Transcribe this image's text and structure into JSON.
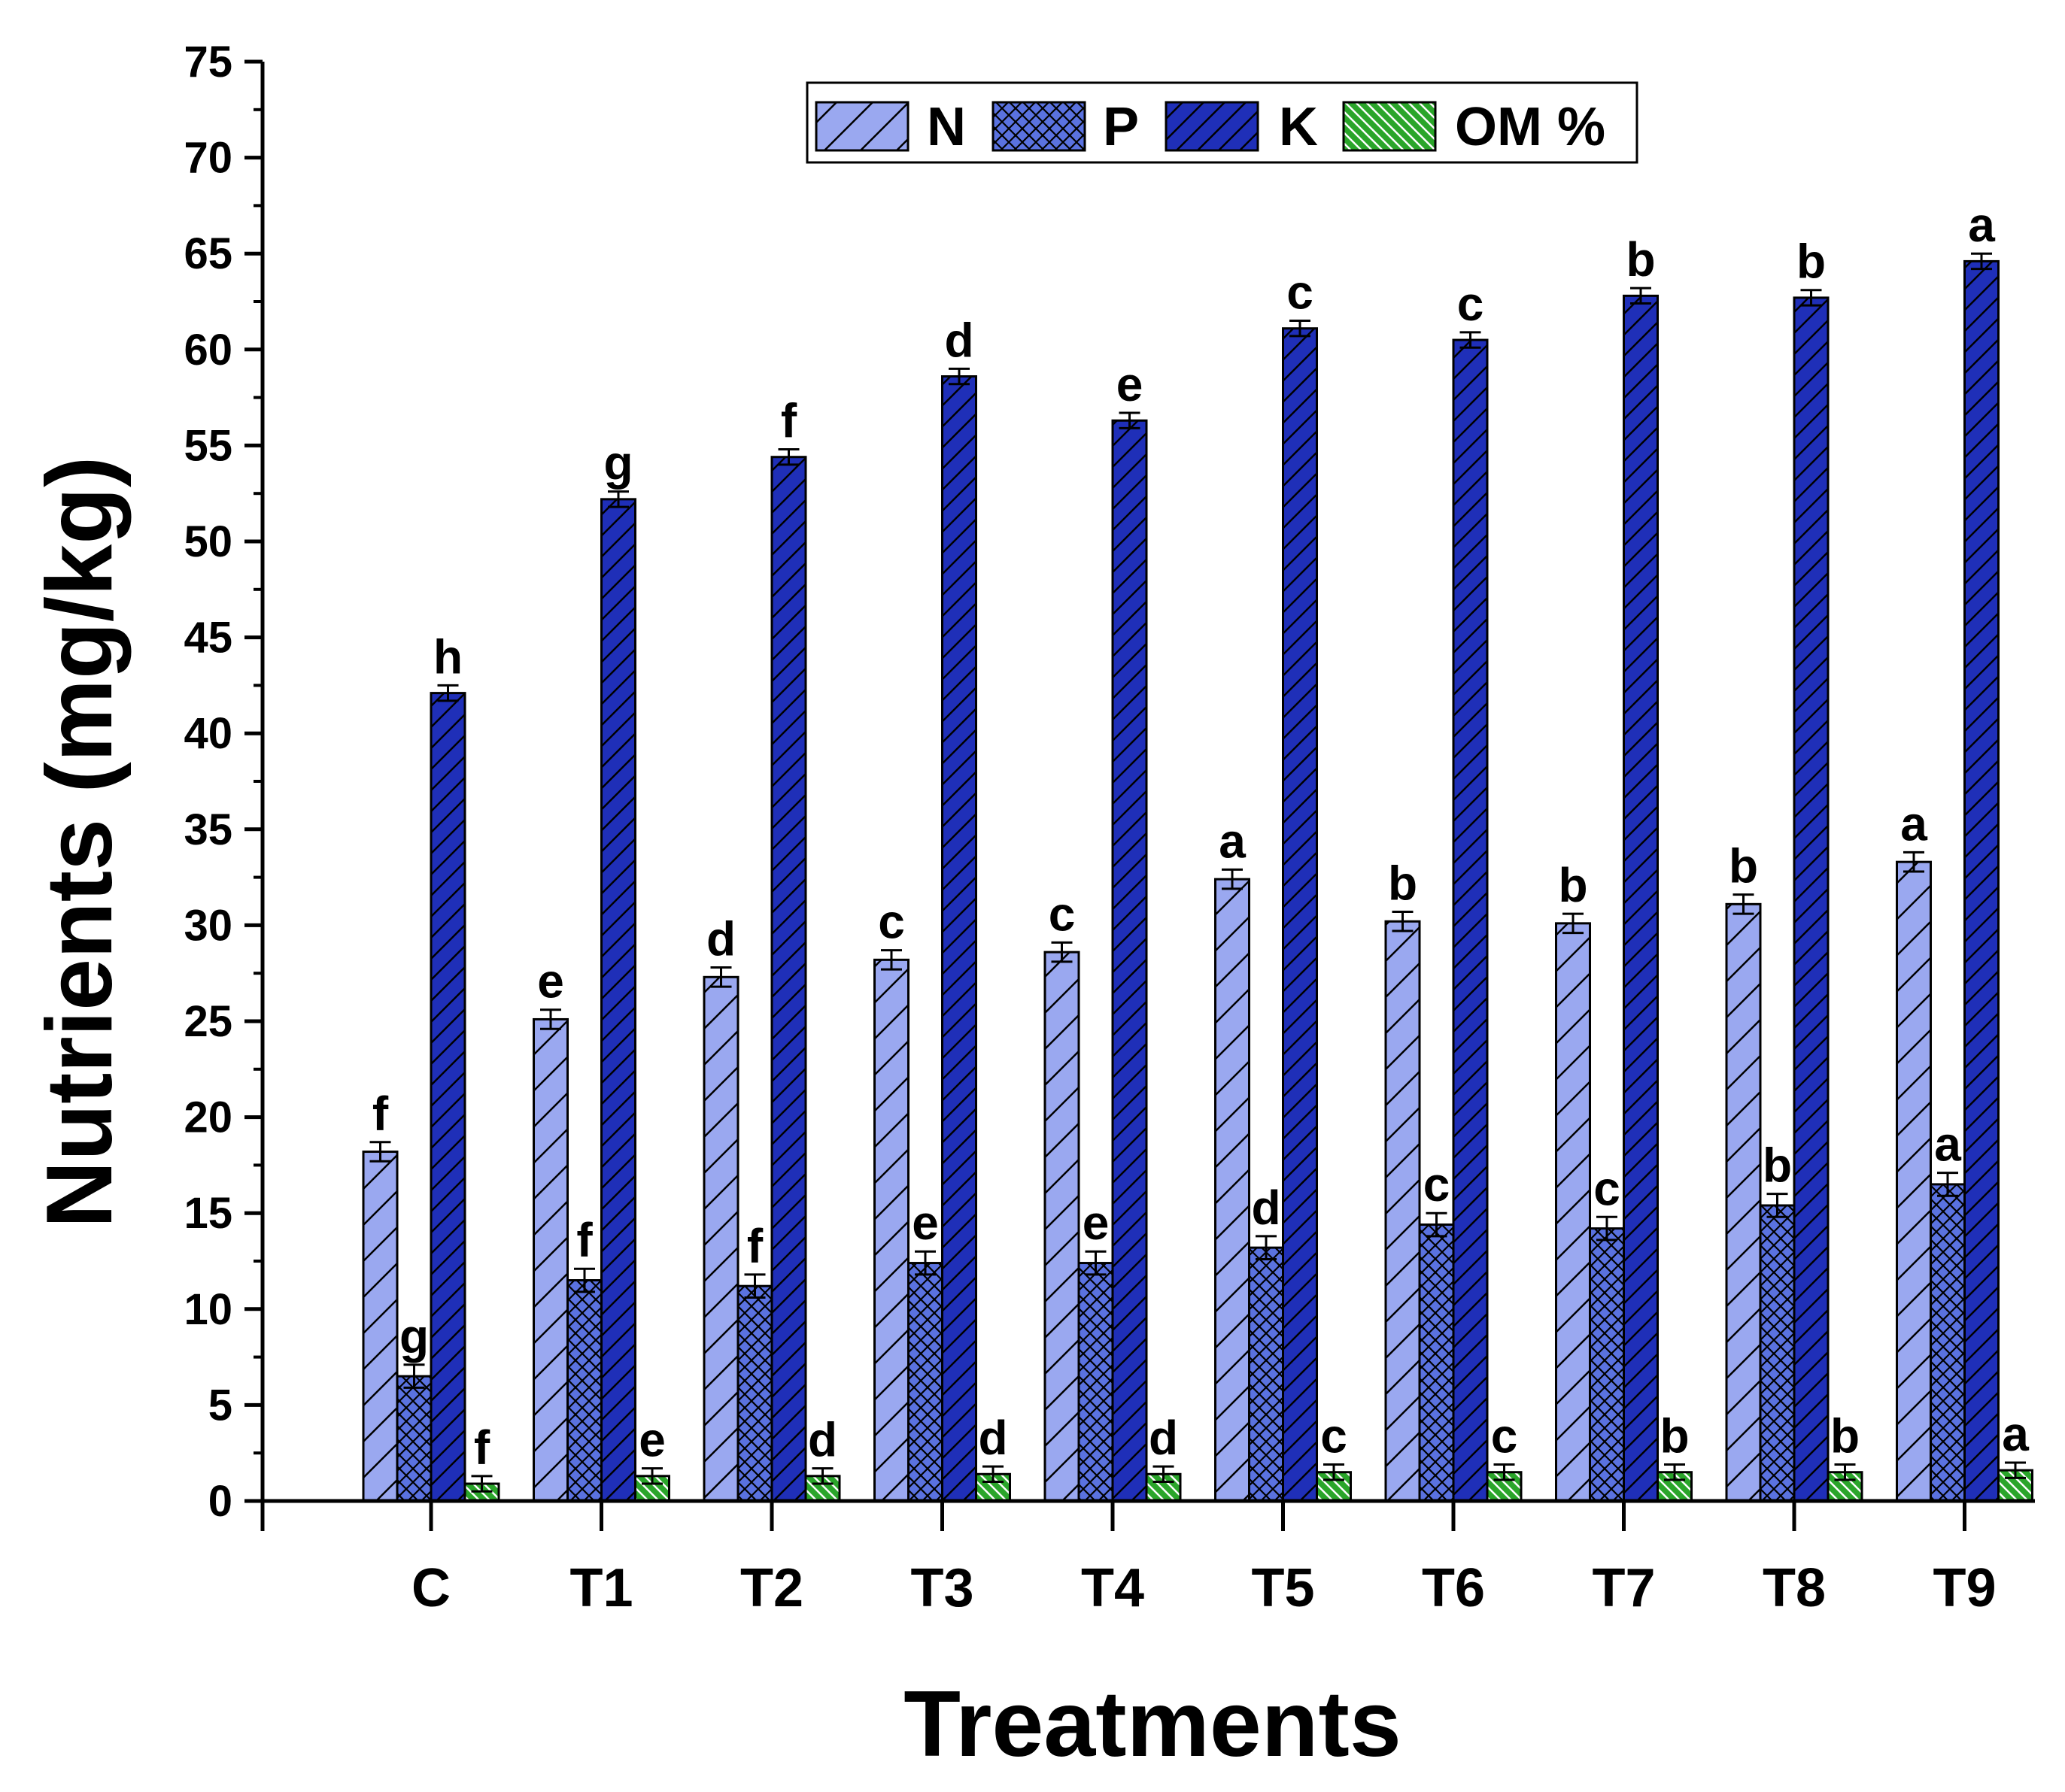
{
  "chart_data": {
    "type": "bar",
    "title": "",
    "xlabel": "Treatments",
    "ylabel": "Nutrients (mg/kg)",
    "ylim": [
      0,
      75
    ],
    "yticks": [
      0,
      5,
      10,
      15,
      20,
      25,
      30,
      35,
      40,
      45,
      50,
      55,
      60,
      65,
      70,
      75
    ],
    "legend_position": "top-right",
    "grid": false,
    "categories": [
      "C",
      "T1",
      "T2",
      "T3",
      "T4",
      "T5",
      "T6",
      "T7",
      "T8",
      "T9"
    ],
    "series": [
      {
        "name": "N",
        "color": "#9aa8f0",
        "pattern": "hatch-forward",
        "values": [
          18.2,
          25.1,
          27.3,
          28.2,
          28.6,
          32.4,
          30.2,
          30.1,
          31.1,
          33.3
        ],
        "errors": [
          0.5,
          0.5,
          0.5,
          0.5,
          0.5,
          0.5,
          0.5,
          0.5,
          0.5,
          0.5
        ],
        "letters": [
          "f",
          "e",
          "d",
          "c",
          "c",
          "a",
          "b",
          "b",
          "b",
          "a"
        ]
      },
      {
        "name": "P",
        "color": "#5a72e0",
        "pattern": "crosshatch",
        "values": [
          6.5,
          11.5,
          11.2,
          12.4,
          12.4,
          13.2,
          14.4,
          14.2,
          15.4,
          16.5
        ],
        "errors": [
          0.6,
          0.6,
          0.6,
          0.6,
          0.6,
          0.6,
          0.6,
          0.6,
          0.6,
          0.6
        ],
        "letters": [
          "g",
          "f",
          "f",
          "e",
          "e",
          "d",
          "c",
          "c",
          "b",
          "a"
        ]
      },
      {
        "name": "K",
        "color": "#1f2fb8",
        "pattern": "hatch-forward",
        "values": [
          42.1,
          52.2,
          54.4,
          58.6,
          56.3,
          61.1,
          60.5,
          62.8,
          62.7,
          64.6
        ],
        "errors": [
          0.4,
          0.4,
          0.4,
          0.4,
          0.4,
          0.4,
          0.4,
          0.4,
          0.4,
          0.4
        ],
        "letters": [
          "h",
          "g",
          "f",
          "d",
          "e",
          "c",
          "c",
          "b",
          "b",
          "a"
        ]
      },
      {
        "name": "OM %",
        "color": "#2aa52a",
        "pattern": "hatch-back",
        "values": [
          0.9,
          1.3,
          1.3,
          1.4,
          1.4,
          1.5,
          1.5,
          1.5,
          1.5,
          1.6
        ],
        "errors": [
          0.4,
          0.4,
          0.4,
          0.4,
          0.4,
          0.4,
          0.4,
          0.4,
          0.4,
          0.4
        ],
        "letters": [
          "f",
          "e",
          "d",
          "d",
          "d",
          "c",
          "c",
          "b",
          "b",
          "a"
        ]
      }
    ]
  }
}
